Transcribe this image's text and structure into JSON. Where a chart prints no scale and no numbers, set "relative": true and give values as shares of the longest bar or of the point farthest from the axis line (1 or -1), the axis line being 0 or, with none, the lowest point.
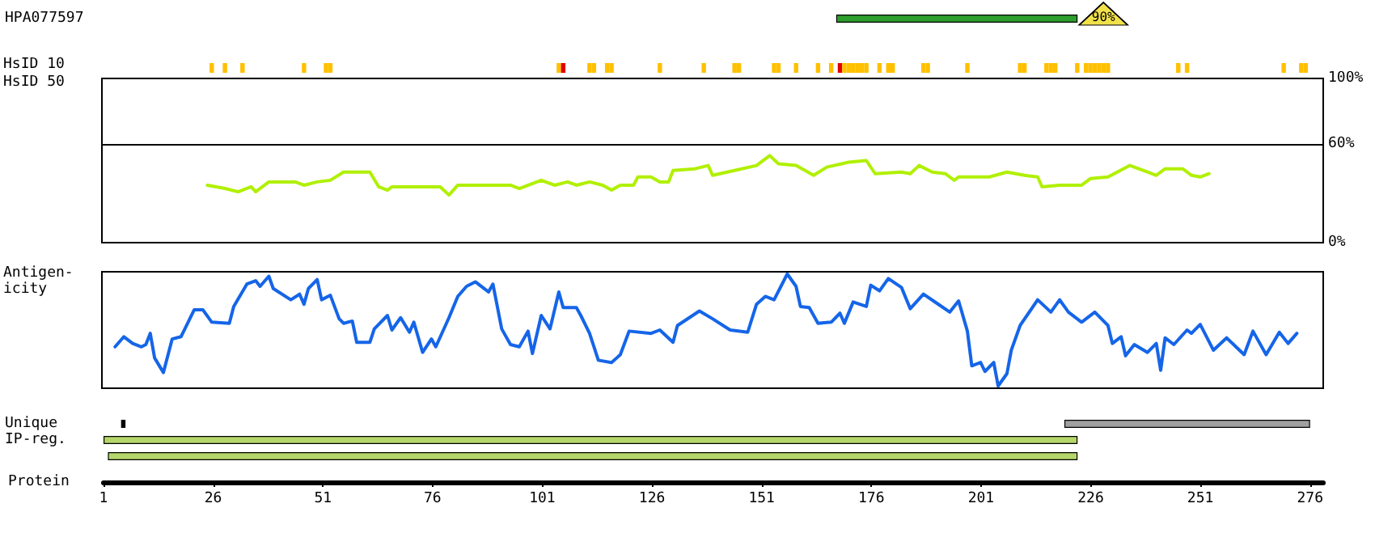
{
  "chart_data": [
    {
      "type": "bar",
      "orientation": "horizontal",
      "categories": [
        "HPA077597"
      ],
      "base": [
        168
      ],
      "values": [
        55
      ],
      "color": "#2e9e2e",
      "xlim": [
        1,
        276
      ],
      "xticks": [
        1,
        26,
        51,
        76,
        101,
        126,
        151,
        176,
        201,
        226,
        251,
        276
      ],
      "tick_labels": "y",
      "annotations": [
        "90%"
      ]
    },
    {
      "type": "bar",
      "ylabel": "HsID 10",
      "relative": true,
      "xlim": [
        1,
        276
      ],
      "xticks": [
        1,
        26,
        51,
        76,
        101,
        126,
        151,
        176,
        201,
        226,
        251,
        276
      ],
      "tick_labels": false,
      "x": [
        26,
        29,
        33,
        47,
        52,
        53,
        105,
        106,
        112,
        113,
        116,
        117,
        128,
        138,
        145,
        146,
        154,
        155,
        159,
        164,
        167,
        169,
        170,
        171,
        172,
        173,
        174,
        175,
        178,
        180,
        181,
        188,
        189,
        198,
        210,
        211,
        216,
        217,
        218,
        223,
        225,
        226,
        227,
        228,
        229,
        230,
        246,
        248,
        270,
        274,
        275
      ],
      "values": [
        1,
        1,
        1,
        1,
        1,
        1,
        1,
        1,
        1,
        1,
        1,
        1,
        1,
        1,
        1,
        1,
        1,
        1,
        1,
        1,
        1,
        1,
        1,
        1,
        1,
        1,
        1,
        1,
        1,
        1,
        1,
        1,
        1,
        1,
        1,
        1,
        1,
        1,
        1,
        1,
        1,
        1,
        1,
        1,
        1,
        1,
        1,
        1,
        1,
        1,
        1
      ],
      "colors": [
        "#ffc000",
        "#ffc000",
        "#ffc000",
        "#ffc000",
        "#ffc000",
        "#ffc000",
        "#ffc000",
        "#e00000",
        "#ffc000",
        "#ffc000",
        "#ffc000",
        "#ffc000",
        "#ffc000",
        "#ffc000",
        "#ffc000",
        "#ffc000",
        "#ffc000",
        "#ffc000",
        "#ffc000",
        "#ffc000",
        "#ffc000",
        "#e00000",
        "#ffc000",
        "#ffc000",
        "#ffc000",
        "#ffc000",
        "#ffc000",
        "#ffc000",
        "#ffc000",
        "#ffc000",
        "#ffc000",
        "#ffc000",
        "#ffc000",
        "#ffc000",
        "#ffc000",
        "#ffc000",
        "#ffc000",
        "#ffc000",
        "#ffc000",
        "#ffc000",
        "#ffc000",
        "#ffc000",
        "#ffc000",
        "#ffc000",
        "#ffc000",
        "#ffc000",
        "#ffc000",
        "#ffc000",
        "#ffc000",
        "#ffc000",
        "#ffc000"
      ]
    },
    {
      "type": "line",
      "ylabel": "HsID 50",
      "xlim": [
        1,
        279
      ],
      "ylim": [
        0,
        100
      ],
      "yticks": [
        {
          "value": 0,
          "label": "0%"
        },
        {
          "value": 60,
          "label": "60%"
        },
        {
          "value": 100,
          "label": "100%"
        }
      ],
      "tick_labels": "y",
      "marker": "none",
      "line_style": "solid",
      "ref_lines": [
        {
          "axis": "y",
          "value": 60,
          "color": "#000000"
        }
      ],
      "series": [
        {
          "color": "#b0f000",
          "x": [
            25,
            29,
            32,
            35,
            36,
            39,
            45,
            47,
            50,
            53,
            56,
            62,
            64,
            66,
            67,
            78,
            80,
            82,
            94,
            96,
            101,
            104,
            107,
            109,
            112,
            115,
            117,
            119,
            122,
            123,
            126,
            128,
            130,
            131,
            136,
            139,
            140,
            145,
            150,
            153,
            155,
            159,
            163,
            166,
            171,
            175,
            177,
            183,
            185,
            187,
            190,
            193,
            195,
            196,
            203,
            207,
            211,
            214,
            215,
            219,
            224,
            226,
            230,
            235,
            239,
            241,
            243,
            247,
            249,
            251,
            253
          ],
          "values": [
            35,
            33,
            31,
            34,
            31,
            37,
            37,
            35,
            37,
            38,
            43,
            43,
            34,
            32,
            34,
            34,
            29,
            35,
            35,
            33,
            38,
            35,
            37,
            35,
            37,
            35,
            32,
            35,
            35,
            40,
            40,
            37,
            37,
            44,
            45,
            47,
            41,
            44,
            47,
            53,
            48,
            47,
            41,
            46,
            49,
            50,
            42,
            43,
            42,
            47,
            43,
            42,
            38,
            40,
            40,
            43,
            41,
            40,
            34,
            35,
            35,
            39,
            40,
            47,
            43,
            41,
            45,
            45,
            41,
            40,
            42
          ]
        }
      ]
    },
    {
      "type": "line",
      "ylabel": "Antigen-\nicity",
      "relative": true,
      "xlim": [
        1,
        279
      ],
      "tick_labels": false,
      "marker": "none",
      "line_style": "solid",
      "series": [
        {
          "color": "#1565e8",
          "x": [
            4,
            6,
            8,
            10,
            11,
            12,
            13,
            15,
            17,
            19,
            22,
            24,
            26,
            30,
            31,
            34,
            36,
            37,
            39,
            40,
            44,
            46,
            47,
            48,
            50,
            51,
            53,
            55,
            56,
            58,
            59,
            62,
            63,
            66,
            67,
            69,
            71,
            72,
            74,
            76,
            77,
            80,
            82,
            84,
            86,
            89,
            90,
            92,
            94,
            96,
            98,
            99,
            101,
            103,
            105,
            106,
            109,
            110,
            112,
            114,
            117,
            119,
            121,
            126,
            128,
            131,
            132,
            137,
            140,
            144,
            148,
            150,
            152,
            154,
            157,
            159,
            160,
            162,
            164,
            167,
            169,
            170,
            172,
            175,
            176,
            178,
            180,
            183,
            185,
            188,
            191,
            194,
            196,
            198,
            199,
            201,
            202,
            204,
            205,
            207,
            208,
            210,
            214,
            217,
            219,
            221,
            224,
            227,
            230,
            231,
            233,
            234,
            236,
            239,
            241,
            242,
            243,
            245,
            248,
            249,
            251,
            254,
            257,
            261,
            263,
            266,
            269,
            271,
            273
          ],
          "values": [
            0.35,
            0.44,
            0.38,
            0.35,
            0.37,
            0.47,
            0.25,
            0.12,
            0.42,
            0.44,
            0.68,
            0.68,
            0.57,
            0.56,
            0.71,
            0.91,
            0.94,
            0.89,
            0.98,
            0.87,
            0.77,
            0.82,
            0.73,
            0.87,
            0.95,
            0.77,
            0.81,
            0.6,
            0.56,
            0.58,
            0.39,
            0.39,
            0.51,
            0.63,
            0.5,
            0.61,
            0.48,
            0.57,
            0.3,
            0.42,
            0.35,
            0.61,
            0.8,
            0.89,
            0.93,
            0.84,
            0.91,
            0.51,
            0.37,
            0.35,
            0.49,
            0.29,
            0.63,
            0.51,
            0.84,
            0.7,
            0.7,
            0.63,
            0.47,
            0.23,
            0.21,
            0.28,
            0.49,
            0.47,
            0.5,
            0.39,
            0.54,
            0.67,
            0.6,
            0.5,
            0.48,
            0.73,
            0.8,
            0.77,
            1,
            0.89,
            0.71,
            0.7,
            0.56,
            0.57,
            0.65,
            0.56,
            0.75,
            0.71,
            0.9,
            0.85,
            0.96,
            0.88,
            0.69,
            0.82,
            0.74,
            0.66,
            0.76,
            0.49,
            0.18,
            0.21,
            0.13,
            0.21,
            0,
            0.11,
            0.32,
            0.54,
            0.77,
            0.66,
            0.77,
            0.66,
            0.57,
            0.66,
            0.54,
            0.38,
            0.44,
            0.27,
            0.37,
            0.3,
            0.38,
            0.14,
            0.43,
            0.37,
            0.5,
            0.47,
            0.55,
            0.32,
            0.43,
            0.28,
            0.49,
            0.28,
            0.48,
            0.38,
            0.47
          ]
        }
      ]
    },
    {
      "type": "bar",
      "orientation": "horizontal",
      "categories": [
        "Unique",
        "IP-reg.",
        null
      ],
      "xlabel": "Protein",
      "xlim": [
        1,
        279
      ],
      "xticks": [
        1,
        26,
        51,
        76,
        101,
        126,
        151,
        176,
        201,
        226,
        251,
        276
      ],
      "series": [
        {
          "color": "#000000",
          "base": [
            5,
            null,
            null
          ],
          "values": [
            1,
            null,
            null
          ]
        },
        {
          "color": "#a0a0a0",
          "base": [
            220,
            null,
            null
          ],
          "values": [
            56,
            null,
            null
          ]
        },
        {
          "color": "#b4d66a",
          "base": [
            null,
            1,
            2
          ],
          "values": [
            null,
            222,
            221
          ]
        }
      ]
    }
  ]
}
